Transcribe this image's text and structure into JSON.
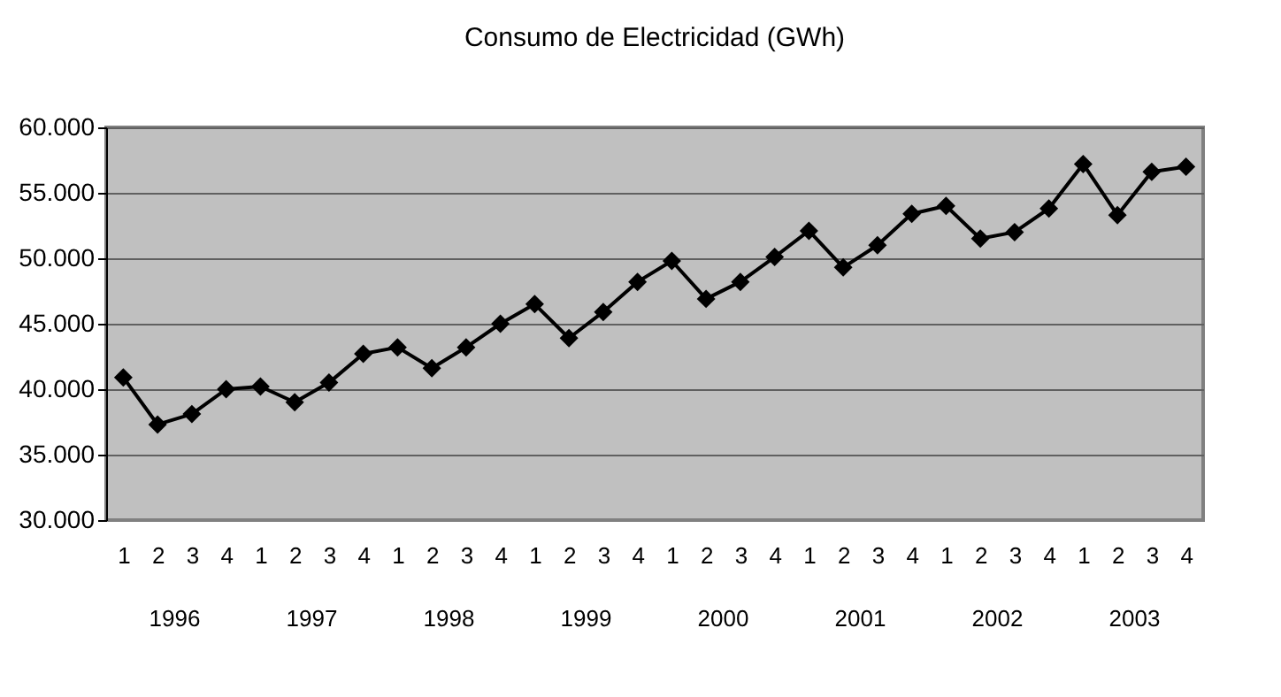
{
  "chart_data": {
    "type": "line",
    "title": "Consumo de Electricidad (GWh)",
    "categories": [
      "1",
      "2",
      "3",
      "4",
      "1",
      "2",
      "3",
      "4",
      "1",
      "2",
      "3",
      "4",
      "1",
      "2",
      "3",
      "4",
      "1",
      "2",
      "3",
      "4",
      "1",
      "2",
      "3",
      "4",
      "1",
      "2",
      "3",
      "4",
      "1",
      "2",
      "3",
      "4"
    ],
    "annotations": [
      "1996",
      "1997",
      "1998",
      "1999",
      "2000",
      "2001",
      "2002",
      "2003"
    ],
    "series": [
      {
        "color": "#000000",
        "values": [
          40900,
          37300,
          38100,
          40000,
          40200,
          39000,
          40500,
          42700,
          43200,
          41600,
          43200,
          45000,
          46500,
          43900,
          45900,
          48200,
          49800,
          46900,
          48200,
          50100,
          52100,
          49300,
          51000,
          53400,
          54000,
          51500,
          52000,
          53800,
          57200,
          53300,
          56600,
          57000
        ]
      }
    ],
    "ylim": [
      30000,
      60000
    ],
    "yticks": [
      {
        "value": 30000,
        "label": "30.000"
      },
      {
        "value": 35000,
        "label": "35.000"
      },
      {
        "value": 40000,
        "label": "40.000"
      },
      {
        "value": 45000,
        "label": "45.000"
      },
      {
        "value": 50000,
        "label": "50.000"
      },
      {
        "value": 55000,
        "label": "55.000"
      },
      {
        "value": 60000,
        "label": "60.000"
      }
    ],
    "grid": "y",
    "marker": "diamond",
    "line_style": "solid",
    "legend": false
  }
}
